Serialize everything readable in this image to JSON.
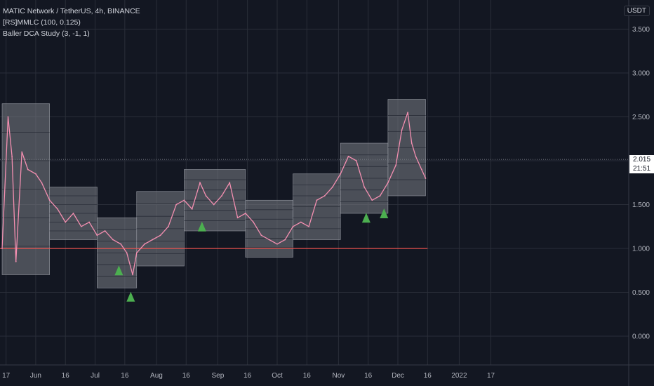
{
  "header": {
    "symbol_line": "MATIC Network / TetherUS, 4h, BINANCE",
    "indicator_1": "[RS]MMLC (100, 0.125)",
    "indicator_2": "Baller DCA Study (3, -1, 1)",
    "unit": "USDT"
  },
  "price_tag": {
    "price": "2.015",
    "countdown": "21:51"
  },
  "colors": {
    "background": "#131722",
    "grid": "#2a2e39",
    "price_line": "#f48fb1",
    "band_fill": "#7a7d85",
    "support_line": "#ef5350",
    "signal": "#4caf50"
  },
  "chart_data": {
    "type": "line",
    "title": "MATIC Network / TetherUS, 4h, BINANCE",
    "xlabel": "",
    "ylabel": "",
    "x_ticks": [
      "17",
      "Jun",
      "16",
      "Jul",
      "16",
      "Aug",
      "16",
      "Sep",
      "16",
      "Oct",
      "16",
      "Nov",
      "16",
      "Dec",
      "16",
      "2022",
      "17"
    ],
    "y_ticks": [
      "0.000",
      "0.500",
      "1.000",
      "1.500",
      "2.000",
      "2.500",
      "3.000",
      "3.500"
    ],
    "ylim": [
      -0.2,
      3.9
    ],
    "grid": true,
    "legend": "top-left",
    "series": [
      {
        "name": "",
        "x": [
          "2021-05-15",
          "2021-05-18",
          "2021-05-20",
          "2021-05-22",
          "2021-05-25",
          "2021-05-28",
          "2021-06-01",
          "2021-06-04",
          "2021-06-08",
          "2021-06-12",
          "2021-06-16",
          "2021-06-20",
          "2021-06-24",
          "2021-06-28",
          "2021-07-02",
          "2021-07-06",
          "2021-07-10",
          "2021-07-14",
          "2021-07-17",
          "2021-07-20",
          "2021-07-22",
          "2021-07-26",
          "2021-07-30",
          "2021-08-03",
          "2021-08-07",
          "2021-08-11",
          "2021-08-15",
          "2021-08-19",
          "2021-08-23",
          "2021-08-26",
          "2021-08-30",
          "2021-09-03",
          "2021-09-07",
          "2021-09-11",
          "2021-09-15",
          "2021-09-19",
          "2021-09-23",
          "2021-09-27",
          "2021-10-01",
          "2021-10-05",
          "2021-10-09",
          "2021-10-13",
          "2021-10-17",
          "2021-10-21",
          "2021-10-25",
          "2021-10-29",
          "2021-11-02",
          "2021-11-06",
          "2021-11-10",
          "2021-11-14",
          "2021-11-18",
          "2021-11-22",
          "2021-11-26",
          "2021-11-30",
          "2021-12-03",
          "2021-12-06",
          "2021-12-08",
          "2021-12-10",
          "2021-12-13",
          "2021-12-15"
        ],
        "values": [
          1.0,
          2.5,
          2.05,
          0.85,
          2.1,
          1.9,
          1.85,
          1.75,
          1.55,
          1.45,
          1.3,
          1.4,
          1.25,
          1.3,
          1.15,
          1.2,
          1.1,
          1.05,
          0.95,
          0.7,
          0.95,
          1.05,
          1.1,
          1.15,
          1.25,
          1.5,
          1.55,
          1.45,
          1.75,
          1.6,
          1.5,
          1.6,
          1.75,
          1.35,
          1.4,
          1.3,
          1.15,
          1.1,
          1.05,
          1.1,
          1.25,
          1.3,
          1.25,
          1.55,
          1.6,
          1.7,
          1.85,
          2.05,
          2.0,
          1.7,
          1.55,
          1.6,
          1.75,
          1.95,
          2.35,
          2.55,
          2.2,
          2.05,
          1.9,
          1.8
        ]
      }
    ],
    "signals": {
      "name": "Baller DCA Study buy signals",
      "x": [
        "2021-07-13",
        "2021-07-19",
        "2021-08-24",
        "2021-11-15",
        "2021-11-24"
      ],
      "values": [
        0.75,
        0.45,
        1.25,
        1.35,
        1.4
      ]
    },
    "support_level": 1.0
  }
}
